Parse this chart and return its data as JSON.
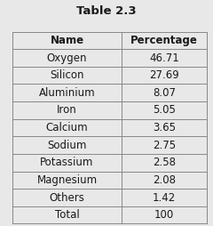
{
  "title": "Table 2.3",
  "headers": [
    "Name",
    "Percentage"
  ],
  "rows": [
    [
      "Oxygen",
      "46.71"
    ],
    [
      "Silicon",
      "27.69"
    ],
    [
      "Aluminium",
      "8.07"
    ],
    [
      "Iron",
      "5.05"
    ],
    [
      "Calcium",
      "3.65"
    ],
    [
      "Sodium",
      "2.75"
    ],
    [
      "Potassium",
      "2.58"
    ],
    [
      "Magnesium",
      "2.08"
    ],
    [
      "Others",
      "1.42"
    ],
    [
      "Total",
      "100"
    ]
  ],
  "title_fontsize": 9.5,
  "header_fontsize": 8.5,
  "cell_fontsize": 8.5,
  "line_color": "#888888",
  "text_color": "#1a1a1a",
  "fig_bg": "#e8e8e8",
  "cell_bg": "#e8e8e8"
}
